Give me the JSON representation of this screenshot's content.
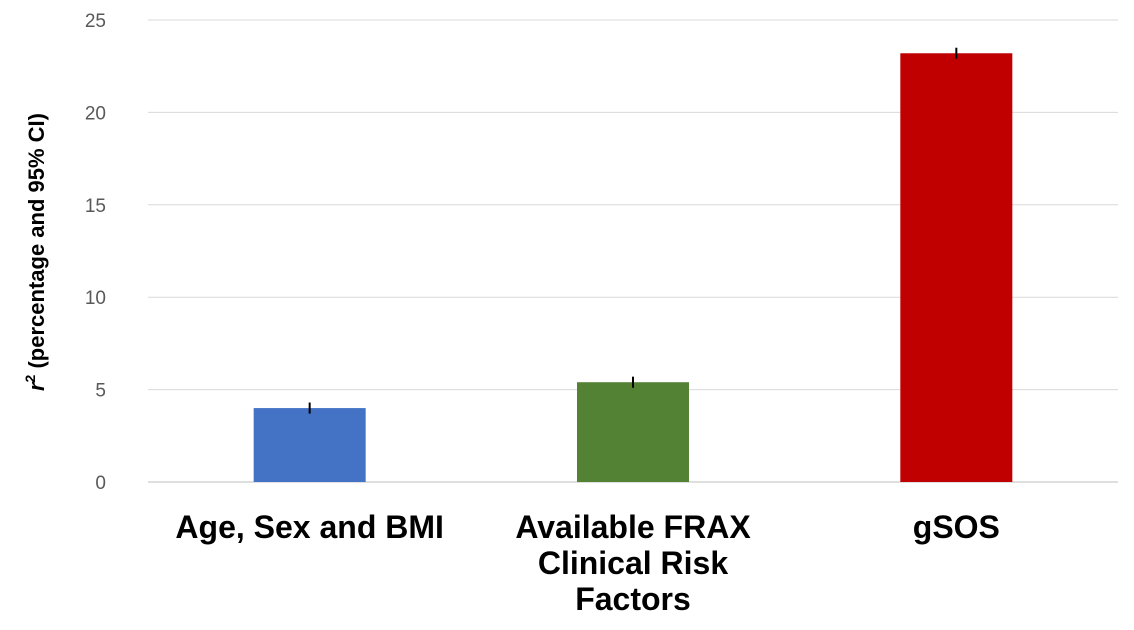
{
  "chart_data": {
    "type": "bar",
    "ylabel_symbol": "r",
    "ylabel_exponent": "2",
    "ylabel_text": " (percentage and 95% CI)",
    "ylim": [
      0,
      25
    ],
    "yticks": [
      "0",
      "5",
      "10",
      "15",
      "20",
      "25"
    ],
    "grid": true,
    "categories": [
      [
        "Age, Sex and BMI"
      ],
      [
        "Available FRAX",
        "Clinical Risk",
        "Factors"
      ],
      [
        "gSOS"
      ]
    ],
    "values": [
      4.0,
      5.4,
      23.2
    ],
    "ci_low": [
      3.7,
      5.1,
      22.9
    ],
    "ci_high": [
      4.3,
      5.7,
      23.5
    ],
    "colors": [
      "#4472C4",
      "#548235",
      "#C00000"
    ]
  }
}
